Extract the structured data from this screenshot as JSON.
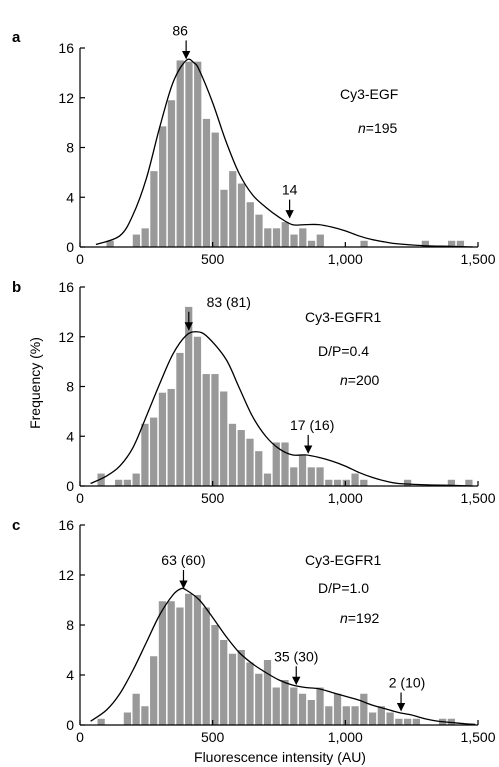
{
  "figure": {
    "ylabel": "Frequency (%)",
    "xlabel": "Fluorescence intensity (AU)",
    "bar_color": "#999999",
    "curve_color": "#000000"
  },
  "chart_data": [
    {
      "type": "bar",
      "panel": "a",
      "xlim": [
        0,
        1500
      ],
      "ylim": [
        0,
        16
      ],
      "x_ticks": [
        0,
        500,
        1000,
        1500
      ],
      "x_tick_labels": [
        "0",
        "500",
        "1,000",
        "1,500"
      ],
      "y_ticks": [
        0,
        4,
        8,
        12,
        16
      ],
      "y_tick_labels": [
        "0",
        "4",
        "8",
        "12",
        "16"
      ],
      "bin_width": 33,
      "bins": [
        100,
        133,
        166,
        199,
        232,
        265,
        298,
        331,
        364,
        397,
        430,
        463,
        496,
        529,
        562,
        595,
        628,
        661,
        694,
        727,
        760,
        793,
        826,
        859,
        892,
        925,
        958,
        991,
        1024,
        1057,
        1090,
        1123,
        1156,
        1189,
        1222,
        1255,
        1288,
        1321,
        1354,
        1387,
        1420,
        1453
      ],
      "values": [
        0.5,
        0,
        0,
        1,
        1.5,
        6.1,
        9.7,
        11.8,
        15,
        14.9,
        14.9,
        10.3,
        9.2,
        4.6,
        6.1,
        5.1,
        3.6,
        2.6,
        1.5,
        1.5,
        2,
        1,
        1.5,
        0.5,
        1,
        0,
        0,
        0,
        0,
        0.5,
        0,
        0,
        0,
        0,
        0,
        0,
        0.5,
        0,
        0,
        0.5,
        0.5,
        0
      ],
      "fit_curve": {
        "x": [
          60,
          150,
          200,
          250,
          300,
          350,
          400,
          430,
          450,
          500,
          550,
          600,
          650,
          700,
          750,
          800,
          850,
          900,
          950,
          1000,
          1050,
          1100,
          1150,
          1200,
          1300,
          1400,
          1480
        ],
        "y": [
          0.2,
          0.9,
          2.6,
          5.5,
          9.6,
          13.2,
          15,
          14.8,
          14.2,
          11.6,
          8.5,
          5.9,
          4.2,
          3.2,
          2.4,
          1.8,
          1.8,
          1.8,
          1.6,
          1.3,
          0.9,
          0.6,
          0.4,
          0.25,
          0.1,
          0.05,
          0
        ]
      },
      "annotations": [
        {
          "label": "86",
          "x": 400,
          "y": 15
        },
        {
          "label": "14",
          "x": 790,
          "y": 2.2
        }
      ],
      "text": [
        "Cy3-EGF",
        "n=195"
      ]
    },
    {
      "type": "bar",
      "panel": "b",
      "xlim": [
        0,
        1500
      ],
      "ylim": [
        0,
        16
      ],
      "x_ticks": [
        0,
        500,
        1000,
        1500
      ],
      "x_tick_labels": [
        "0",
        "500",
        "1,000",
        "1,500"
      ],
      "y_ticks": [
        0,
        4,
        8,
        12,
        16
      ],
      "y_tick_labels": [
        "0",
        "4",
        "8",
        "12",
        "16"
      ],
      "bin_width": 33,
      "bins": [
        66,
        99,
        132,
        165,
        198,
        231,
        264,
        297,
        330,
        363,
        396,
        429,
        462,
        495,
        528,
        561,
        594,
        627,
        660,
        693,
        726,
        759,
        792,
        825,
        858,
        891,
        924,
        957,
        990,
        1023,
        1056,
        1089,
        1122,
        1155,
        1188,
        1221,
        1254,
        1287,
        1320,
        1353,
        1386,
        1419,
        1452
      ],
      "values": [
        1,
        0,
        0.5,
        0.5,
        1,
        5,
        5.5,
        7.5,
        7.8,
        10.7,
        14.4,
        12,
        9,
        9,
        7.6,
        5,
        4.5,
        3.8,
        2.8,
        1,
        3.5,
        3.5,
        1.5,
        2.5,
        1.5,
        1.5,
        0.5,
        0.5,
        0.5,
        1,
        0.5,
        0,
        0,
        0,
        0,
        0.5,
        0,
        0,
        0,
        0,
        0.5,
        0,
        0.5
      ],
      "fit_curve": {
        "x": [
          40,
          100,
          150,
          200,
          250,
          300,
          350,
          400,
          440,
          480,
          550,
          600,
          650,
          700,
          750,
          800,
          850,
          900,
          950,
          1000,
          1050,
          1100,
          1150,
          1200,
          1300,
          1400,
          1480
        ],
        "y": [
          0.2,
          0.8,
          1.6,
          3.1,
          5.6,
          8.2,
          10.6,
          12.1,
          12.4,
          12,
          10.2,
          7.9,
          5.6,
          4,
          3,
          2.5,
          2.5,
          2.3,
          2,
          1.6,
          1.1,
          0.7,
          0.4,
          0.2,
          0.1,
          0.05,
          0
        ]
      },
      "annotations": [
        {
          "label": "83 (81)",
          "x": 410,
          "y": 12.4
        },
        {
          "label": "17 (16)",
          "x": 860,
          "y": 2.5
        }
      ],
      "text": [
        "Cy3-EGFR1",
        "D/P=0.4",
        "n=200"
      ]
    },
    {
      "type": "bar",
      "panel": "c",
      "xlim": [
        0,
        1500
      ],
      "ylim": [
        0,
        16
      ],
      "x_ticks": [
        0,
        500,
        1000,
        1500
      ],
      "x_tick_labels": [
        "0",
        "500",
        "1,000",
        "1,500"
      ],
      "y_ticks": [
        0,
        4,
        8,
        12,
        16
      ],
      "y_tick_labels": [
        "0",
        "4",
        "8",
        "12",
        "16"
      ],
      "bin_width": 33,
      "bins": [
        66,
        99,
        132,
        165,
        198,
        231,
        264,
        297,
        330,
        363,
        396,
        429,
        462,
        495,
        528,
        561,
        594,
        627,
        660,
        693,
        726,
        759,
        792,
        825,
        858,
        891,
        924,
        957,
        990,
        1023,
        1056,
        1089,
        1122,
        1155,
        1188,
        1221,
        1254,
        1287,
        1320,
        1353,
        1386,
        1419,
        1452
      ],
      "values": [
        0.5,
        0,
        0,
        1,
        2.5,
        1.5,
        5.5,
        9.9,
        9.9,
        9.4,
        10.5,
        10.4,
        9.4,
        8,
        6.8,
        5.7,
        6,
        5,
        4.1,
        5.2,
        3,
        3.6,
        3,
        2.5,
        2,
        3,
        1.5,
        2.5,
        1.5,
        1.5,
        2.5,
        1,
        1.5,
        1,
        0.5,
        0.5,
        0.5,
        0,
        0,
        0.5,
        0.5,
        0,
        0
      ],
      "fit_curve": {
        "x": [
          40,
          100,
          150,
          200,
          250,
          300,
          350,
          380,
          400,
          450,
          500,
          550,
          600,
          650,
          700,
          750,
          800,
          850,
          900,
          950,
          1000,
          1050,
          1100,
          1150,
          1200,
          1250,
          1300,
          1350,
          1400,
          1450,
          1490
        ],
        "y": [
          0.3,
          1.2,
          2.5,
          4.4,
          6.6,
          8.8,
          10.4,
          10.9,
          10.8,
          10,
          8.6,
          7.1,
          5.8,
          4.9,
          4.2,
          3.6,
          3.2,
          3,
          2.9,
          2.6,
          2.3,
          2,
          1.6,
          1.3,
          1,
          0.8,
          0.5,
          0.3,
          0.2,
          0.1,
          0.05
        ]
      },
      "annotations": [
        {
          "label": "63 (60)",
          "x": 390,
          "y": 10.8
        },
        {
          "label": "35 (30)",
          "x": 815,
          "y": 3.1
        },
        {
          "label": "2 (10)",
          "x": 1210,
          "y": 1
        }
      ],
      "text": [
        "Cy3-EGFR1",
        "D/P=1.0",
        "n=192"
      ]
    }
  ]
}
